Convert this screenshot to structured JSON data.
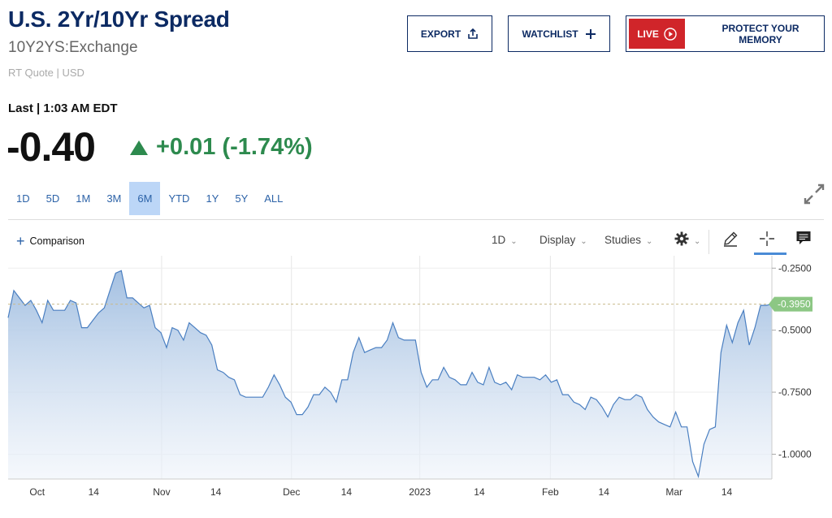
{
  "header": {
    "title": "U.S. 2Yr/10Yr Spread",
    "symbol": "10Y2YS:Exchange",
    "quote_meta": "RT Quote | USD"
  },
  "actions": {
    "export_label": "EXPORT",
    "watchlist_label": "WATCHLIST",
    "live_label": "LIVE",
    "live_promo": "PROTECT YOUR MEMORY"
  },
  "quote": {
    "last_label": "Last | 1:03 AM EDT",
    "price": "-0.40",
    "change": "+0.01 (-1.74%)"
  },
  "ranges": [
    "1D",
    "5D",
    "1M",
    "3M",
    "6M",
    "YTD",
    "1Y",
    "5Y",
    "ALL"
  ],
  "active_range": "6M",
  "toolbar": {
    "comparison_label": "Comparison",
    "interval_label": "1D",
    "display_label": "Display",
    "studies_label": "Studies"
  },
  "colors": {
    "brand_navy": "#0c2a63",
    "up_green": "#2d8a4e",
    "line_blue": "#4a7fc1",
    "live_red": "#d0252a",
    "current_tag": "#8cc784"
  },
  "chart_data": {
    "type": "area",
    "ylim": [
      -1.1,
      -0.2
    ],
    "y_ticks": [
      "-0.2500",
      "-0.5000",
      "-0.7500",
      "-1.0000"
    ],
    "y_tick_values": [
      -0.25,
      -0.5,
      -0.75,
      -1.0
    ],
    "current_value": -0.395,
    "current_label": "-0.3950",
    "x_ticks": [
      "Oct",
      "14",
      "Nov",
      "14",
      "Dec",
      "14",
      "2023",
      "14",
      "Feb",
      "14",
      "Mar",
      "14"
    ],
    "x_tick_positions": [
      0.038,
      0.112,
      0.201,
      0.272,
      0.371,
      0.443,
      0.539,
      0.617,
      0.71,
      0.78,
      0.872,
      0.941
    ],
    "values": [
      -0.45,
      -0.34,
      -0.37,
      -0.4,
      -0.38,
      -0.42,
      -0.47,
      -0.38,
      -0.42,
      -0.42,
      -0.42,
      -0.38,
      -0.39,
      -0.49,
      -0.49,
      -0.46,
      -0.43,
      -0.41,
      -0.34,
      -0.27,
      -0.26,
      -0.37,
      -0.37,
      -0.39,
      -0.41,
      -0.4,
      -0.49,
      -0.51,
      -0.57,
      -0.49,
      -0.5,
      -0.54,
      -0.47,
      -0.49,
      -0.51,
      -0.52,
      -0.56,
      -0.66,
      -0.67,
      -0.69,
      -0.7,
      -0.76,
      -0.77,
      -0.77,
      -0.77,
      -0.77,
      -0.73,
      -0.68,
      -0.72,
      -0.77,
      -0.79,
      -0.84,
      -0.84,
      -0.81,
      -0.76,
      -0.76,
      -0.73,
      -0.75,
      -0.79,
      -0.7,
      -0.7,
      -0.59,
      -0.53,
      -0.59,
      -0.58,
      -0.57,
      -0.57,
      -0.54,
      -0.47,
      -0.53,
      -0.54,
      -0.54,
      -0.54,
      -0.67,
      -0.73,
      -0.7,
      -0.7,
      -0.65,
      -0.69,
      -0.7,
      -0.72,
      -0.72,
      -0.67,
      -0.71,
      -0.72,
      -0.65,
      -0.71,
      -0.72,
      -0.71,
      -0.74,
      -0.68,
      -0.69,
      -0.69,
      -0.69,
      -0.7,
      -0.68,
      -0.71,
      -0.7,
      -0.76,
      -0.76,
      -0.79,
      -0.8,
      -0.82,
      -0.77,
      -0.78,
      -0.81,
      -0.85,
      -0.8,
      -0.77,
      -0.78,
      -0.78,
      -0.76,
      -0.77,
      -0.82,
      -0.85,
      -0.87,
      -0.88,
      -0.89,
      -0.83,
      -0.89,
      -0.89,
      -1.03,
      -1.09,
      -0.96,
      -0.9,
      -0.89,
      -0.59,
      -0.48,
      -0.55,
      -0.47,
      -0.42,
      -0.56,
      -0.49,
      -0.4,
      -0.4,
      -0.395
    ]
  }
}
